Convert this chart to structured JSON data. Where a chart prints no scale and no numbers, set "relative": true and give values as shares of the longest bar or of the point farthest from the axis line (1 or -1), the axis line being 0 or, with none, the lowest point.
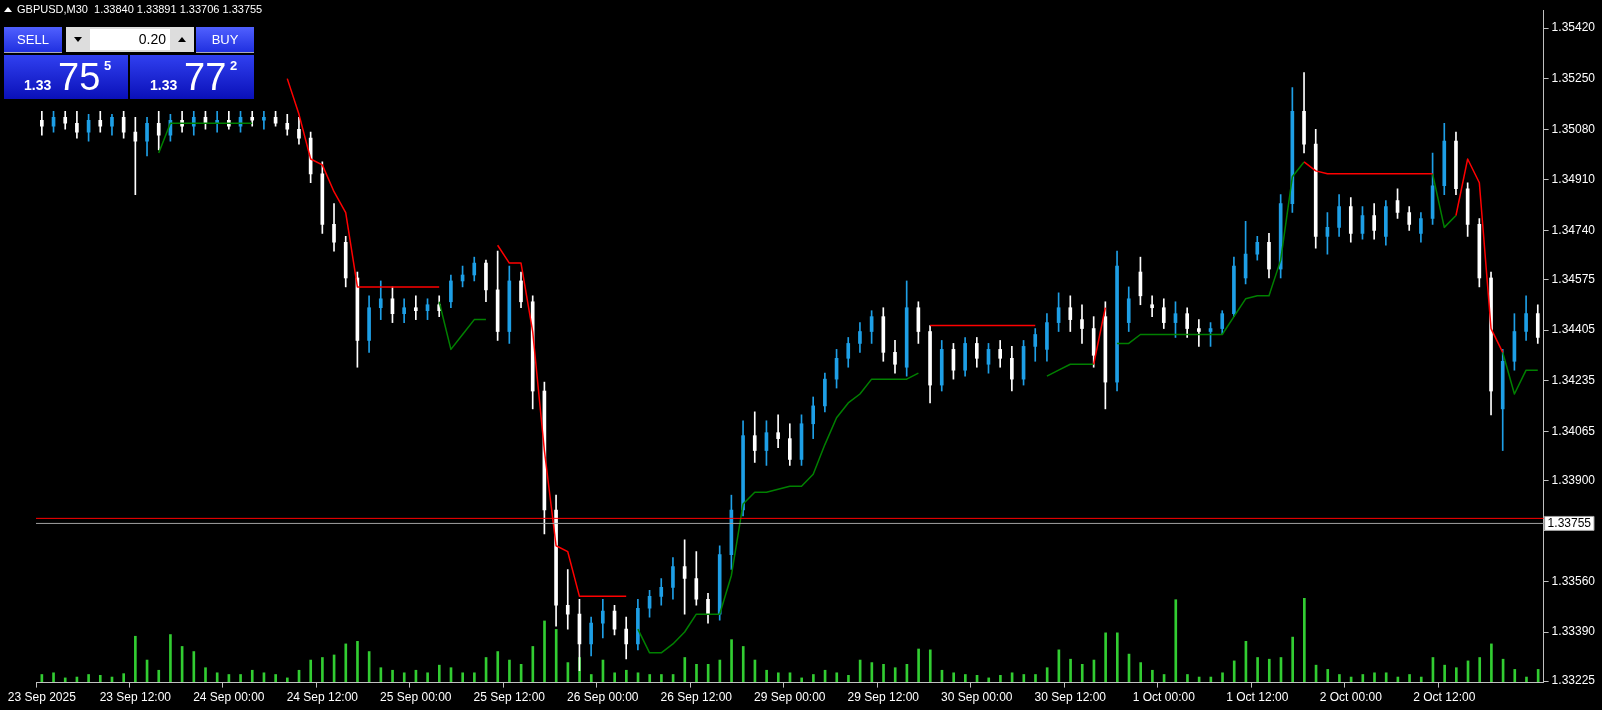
{
  "chart_data": [
    {
      "type": "candlestick",
      "title": "GBPUSD,M30  1.33840 1.33891 1.33706 1.33755",
      "categories": [
        "23 Sep 2025",
        null,
        null,
        null,
        null,
        null,
        null,
        null,
        "23 Sep 12:00",
        null,
        null,
        null,
        null,
        null,
        null,
        null,
        "24 Sep 00:00",
        null,
        null,
        null,
        null,
        null,
        null,
        null,
        "24 Sep 12:00",
        null,
        null,
        null,
        null,
        null,
        null,
        null,
        "25 Sep 00:00",
        null,
        null,
        null,
        null,
        null,
        null,
        null,
        "25 Sep 12:00",
        null,
        null,
        null,
        null,
        null,
        null,
        null,
        "26 Sep 00:00",
        null,
        null,
        null,
        null,
        null,
        null,
        null,
        "26 Sep 12:00",
        null,
        null,
        null,
        null,
        null,
        null,
        null,
        "29 Sep 00:00",
        null,
        null,
        null,
        null,
        null,
        null,
        null,
        "29 Sep 12:00",
        null,
        null,
        null,
        null,
        null,
        null,
        null,
        "30 Sep 00:00",
        null,
        null,
        null,
        null,
        null,
        null,
        null,
        "30 Sep 12:00",
        null,
        null,
        null,
        null,
        null,
        null,
        null,
        "1 Oct 00:00",
        null,
        null,
        null,
        null,
        null,
        null,
        null,
        "1 Oct 12:00",
        null,
        null,
        null,
        null,
        null,
        null,
        null,
        "2 Oct 00:00",
        null,
        null,
        null,
        null,
        null,
        null,
        null,
        "2 Oct 12:00",
        null,
        null,
        null,
        null,
        null,
        null,
        null,
        null
      ],
      "ohlc": [
        [
          1.3511,
          1.3514,
          1.3506,
          1.3509
        ],
        [
          1.3509,
          1.3514,
          1.3507,
          1.3512
        ],
        [
          1.3512,
          1.3514,
          1.3508,
          1.351
        ],
        [
          1.351,
          1.3514,
          1.3505,
          1.3507
        ],
        [
          1.3507,
          1.3513,
          1.3504,
          1.3511
        ],
        [
          1.3511,
          1.3514,
          1.3507,
          1.3509
        ],
        [
          1.3509,
          1.3513,
          1.3506,
          1.3512
        ],
        [
          1.3512,
          1.3514,
          1.3505,
          1.3507
        ],
        [
          1.3507,
          1.3512,
          1.3486,
          1.3504
        ],
        [
          1.3504,
          1.3512,
          1.3499,
          1.351
        ],
        [
          1.351,
          1.3514,
          1.3501,
          1.3506
        ],
        [
          1.3506,
          1.3513,
          1.3504,
          1.3511
        ],
        [
          1.3511,
          1.3514,
          1.3507,
          1.3509
        ],
        [
          1.3509,
          1.3514,
          1.3506,
          1.3512
        ],
        [
          1.3512,
          1.3514,
          1.3508,
          1.351
        ],
        [
          1.351,
          1.3514,
          1.3507,
          1.3511
        ],
        [
          1.3511,
          1.3514,
          1.3508,
          1.3509
        ],
        [
          1.3509,
          1.3514,
          1.3507,
          1.3512
        ],
        [
          1.3512,
          1.3514,
          1.3509,
          1.3511
        ],
        [
          1.3511,
          1.3514,
          1.3508,
          1.3512
        ],
        [
          1.3512,
          1.3514,
          1.3509,
          1.351
        ],
        [
          1.351,
          1.3513,
          1.3506,
          1.3508
        ],
        [
          1.3508,
          1.3512,
          1.3503,
          1.3505
        ],
        [
          1.3505,
          1.3507,
          1.349,
          1.3493
        ],
        [
          1.3493,
          1.3497,
          1.3473,
          1.3476
        ],
        [
          1.3476,
          1.3483,
          1.3467,
          1.347
        ],
        [
          1.347,
          1.3472,
          1.3455,
          1.3458
        ],
        [
          1.3458,
          1.346,
          1.3428,
          1.3437
        ],
        [
          1.3437,
          1.3452,
          1.3433,
          1.3448
        ],
        [
          1.3448,
          1.3457,
          1.3444,
          1.3451
        ],
        [
          1.3451,
          1.3455,
          1.3443,
          1.3446
        ],
        [
          1.3446,
          1.3451,
          1.3443,
          1.3448
        ],
        [
          1.3448,
          1.3452,
          1.3444,
          1.3447
        ],
        [
          1.3447,
          1.3451,
          1.3444,
          1.3449
        ],
        [
          1.3449,
          1.3452,
          1.3445,
          1.3447
        ],
        [
          1.345,
          1.3459,
          1.3448,
          1.3457
        ],
        [
          1.3457,
          1.3462,
          1.3455,
          1.3459
        ],
        [
          1.3459,
          1.3465,
          1.3457,
          1.3463
        ],
        [
          1.3463,
          1.3464,
          1.345,
          1.3454
        ],
        [
          1.3454,
          1.3467,
          1.3437,
          1.344
        ],
        [
          1.344,
          1.3462,
          1.3436,
          1.3457
        ],
        [
          1.3457,
          1.346,
          1.3448,
          1.345
        ],
        [
          1.345,
          1.3452,
          1.3414,
          1.342
        ],
        [
          1.342,
          1.3423,
          1.3372,
          1.338
        ],
        [
          1.338,
          1.3385,
          1.3341,
          1.3348
        ],
        [
          1.3348,
          1.336,
          1.334,
          1.3345
        ],
        [
          1.3345,
          1.335,
          1.3326,
          1.3335
        ],
        [
          1.3335,
          1.3344,
          1.3331,
          1.3342
        ],
        [
          1.3342,
          1.335,
          1.3337,
          1.3346
        ],
        [
          1.3346,
          1.3348,
          1.3338,
          1.334
        ],
        [
          1.334,
          1.3344,
          1.333,
          1.3335
        ],
        [
          1.3335,
          1.335,
          1.3333,
          1.3347
        ],
        [
          1.3347,
          1.3353,
          1.3344,
          1.3351
        ],
        [
          1.3351,
          1.3357,
          1.3348,
          1.3354
        ],
        [
          1.3354,
          1.3364,
          1.335,
          1.3361
        ],
        [
          1.3361,
          1.337,
          1.3345,
          1.3357
        ],
        [
          1.3357,
          1.3366,
          1.3348,
          1.335
        ],
        [
          1.335,
          1.3352,
          1.3342,
          1.3345
        ],
        [
          1.3345,
          1.3368,
          1.3343,
          1.3365
        ],
        [
          1.3365,
          1.3385,
          1.336,
          1.338
        ],
        [
          1.338,
          1.341,
          1.3378,
          1.3405
        ],
        [
          1.3405,
          1.3413,
          1.3396,
          1.34
        ],
        [
          1.34,
          1.341,
          1.3395,
          1.3406
        ],
        [
          1.3406,
          1.3412,
          1.3401,
          1.3404
        ],
        [
          1.3404,
          1.3409,
          1.3395,
          1.3397
        ],
        [
          1.3397,
          1.3412,
          1.3395,
          1.3409
        ],
        [
          1.3409,
          1.3418,
          1.3404,
          1.3415
        ],
        [
          1.3415,
          1.3426,
          1.3413,
          1.3424
        ],
        [
          1.3424,
          1.3434,
          1.3421,
          1.3431
        ],
        [
          1.3431,
          1.3438,
          1.3428,
          1.3436
        ],
        [
          1.3436,
          1.3443,
          1.3433,
          1.344
        ],
        [
          1.344,
          1.3447,
          1.3436,
          1.3445
        ],
        [
          1.3445,
          1.3448,
          1.343,
          1.3433
        ],
        [
          1.3433,
          1.3437,
          1.3426,
          1.3429
        ],
        [
          1.3428,
          1.3457,
          1.3425,
          1.3448
        ],
        [
          1.3448,
          1.345,
          1.3436,
          1.344
        ],
        [
          1.344,
          1.3442,
          1.3416,
          1.3422
        ],
        [
          1.3422,
          1.3437,
          1.342,
          1.3434
        ],
        [
          1.3434,
          1.3436,
          1.3424,
          1.3427
        ],
        [
          1.3427,
          1.3438,
          1.3425,
          1.3436
        ],
        [
          1.3436,
          1.3438,
          1.3428,
          1.3431
        ],
        [
          1.3429,
          1.3436,
          1.3426,
          1.3434
        ],
        [
          1.3434,
          1.3437,
          1.3428,
          1.3431
        ],
        [
          1.3431,
          1.3435,
          1.342,
          1.3424
        ],
        [
          1.3424,
          1.3437,
          1.3422,
          1.3435
        ],
        [
          1.3435,
          1.3441,
          1.343,
          1.3439
        ],
        [
          1.3434,
          1.3446,
          1.343,
          1.3443
        ],
        [
          1.3443,
          1.3453,
          1.344,
          1.3448
        ],
        [
          1.3448,
          1.3452,
          1.344,
          1.3444
        ],
        [
          1.3444,
          1.3449,
          1.3436,
          1.3441
        ],
        [
          1.3441,
          1.3445,
          1.3428,
          1.3432
        ],
        [
          1.3445,
          1.345,
          1.3414,
          1.3423
        ],
        [
          1.3423,
          1.3467,
          1.342,
          1.3462
        ],
        [
          1.3443,
          1.3455,
          1.344,
          1.3451
        ],
        [
          1.346,
          1.3465,
          1.3449,
          1.3452
        ],
        [
          1.3449,
          1.3452,
          1.3445,
          1.3448
        ],
        [
          1.3448,
          1.3451,
          1.3441,
          1.3443
        ],
        [
          1.3443,
          1.345,
          1.3438,
          1.3446
        ],
        [
          1.3446,
          1.3448,
          1.3438,
          1.3441
        ],
        [
          1.3441,
          1.3444,
          1.3435,
          1.344
        ],
        [
          1.344,
          1.3443,
          1.3435,
          1.3441
        ],
        [
          1.3441,
          1.3447,
          1.3439,
          1.3446
        ],
        [
          1.3446,
          1.3465,
          1.3445,
          1.3462
        ],
        [
          1.3458,
          1.3477,
          1.3456,
          1.3466
        ],
        [
          1.3466,
          1.3472,
          1.3464,
          1.347
        ],
        [
          1.347,
          1.3473,
          1.3458,
          1.3461
        ],
        [
          1.3461,
          1.3486,
          1.3458,
          1.3483
        ],
        [
          1.3483,
          1.3522,
          1.348,
          1.3514
        ],
        [
          1.3514,
          1.3527,
          1.35,
          1.3503
        ],
        [
          1.3503,
          1.3508,
          1.3468,
          1.3472
        ],
        [
          1.3472,
          1.348,
          1.3466,
          1.3475
        ],
        [
          1.3475,
          1.3486,
          1.3472,
          1.3482
        ],
        [
          1.3482,
          1.3485,
          1.347,
          1.3473
        ],
        [
          1.3473,
          1.3482,
          1.3471,
          1.3479
        ],
        [
          1.3479,
          1.3483,
          1.3471,
          1.3474
        ],
        [
          1.3472,
          1.3484,
          1.3469,
          1.3482
        ],
        [
          1.3484,
          1.3488,
          1.3478,
          1.348
        ],
        [
          1.348,
          1.3482,
          1.3474,
          1.3476
        ],
        [
          1.3473,
          1.348,
          1.347,
          1.3478
        ],
        [
          1.3478,
          1.35,
          1.3476,
          1.3489
        ],
        [
          1.3489,
          1.351,
          1.3486,
          1.3504
        ],
        [
          1.3504,
          1.3507,
          1.3486,
          1.3488
        ],
        [
          1.3488,
          1.349,
          1.3472,
          1.3476
        ],
        [
          1.3476,
          1.3478,
          1.3455,
          1.3458
        ],
        [
          1.3458,
          1.346,
          1.3412,
          1.342
        ],
        [
          1.3414,
          1.3434,
          1.34,
          1.343
        ],
        [
          1.343,
          1.3446,
          1.3427,
          1.344
        ],
        [
          1.344,
          1.3452,
          1.3437,
          1.3446
        ],
        [
          1.3446,
          1.3449,
          1.3436,
          1.3438
        ]
      ],
      "colors": [
        "#ffffff",
        "#1e9fe6",
        "#ffffff",
        "#ffffff",
        "#1e9fe6",
        "#ffffff",
        "#1e9fe6",
        "#ffffff",
        "#ffffff",
        "#1e9fe6",
        "#ffffff",
        "#1e9fe6",
        "#ffffff",
        "#1e9fe6",
        "#ffffff",
        "#1e9fe6",
        "#ffffff",
        "#1e9fe6",
        "#ffffff",
        "#1e9fe6",
        "#ffffff",
        "#ffffff",
        "#ffffff",
        "#ffffff",
        "#ffffff",
        "#ffffff",
        "#ffffff",
        "#ffffff",
        "#1e9fe6",
        "#1e9fe6",
        "#ffffff",
        "#1e9fe6",
        "#ffffff",
        "#1e9fe6",
        "#ffffff",
        "#1e9fe6",
        "#1e9fe6",
        "#1e9fe6",
        "#ffffff",
        "#ffffff",
        "#1e9fe6",
        "#ffffff",
        "#ffffff",
        "#ffffff",
        "#ffffff",
        "#ffffff",
        "#ffffff",
        "#1e9fe6",
        "#1e9fe6",
        "#ffffff",
        "#ffffff",
        "#1e9fe6",
        "#1e9fe6",
        "#1e9fe6",
        "#1e9fe6",
        "#ffffff",
        "#ffffff",
        "#ffffff",
        "#1e9fe6",
        "#1e9fe6",
        "#1e9fe6",
        "#ffffff",
        "#1e9fe6",
        "#ffffff",
        "#ffffff",
        "#1e9fe6",
        "#1e9fe6",
        "#1e9fe6",
        "#1e9fe6",
        "#1e9fe6",
        "#1e9fe6",
        "#1e9fe6",
        "#ffffff",
        "#ffffff",
        "#1e9fe6",
        "#ffffff",
        "#ffffff",
        "#1e9fe6",
        "#ffffff",
        "#1e9fe6",
        "#ffffff",
        "#1e9fe6",
        "#ffffff",
        "#ffffff",
        "#1e9fe6",
        "#1e9fe6",
        "#1e9fe6",
        "#1e9fe6",
        "#ffffff",
        "#ffffff",
        "#ffffff",
        "#ffffff",
        "#1e9fe6",
        "#1e9fe6",
        "#ffffff",
        "#ffffff",
        "#ffffff",
        "#1e9fe6",
        "#ffffff",
        "#ffffff",
        "#1e9fe6",
        "#1e9fe6",
        "#1e9fe6",
        "#1e9fe6",
        "#1e9fe6",
        "#ffffff",
        "#1e9fe6",
        "#1e9fe6",
        "#ffffff",
        "#ffffff",
        "#1e9fe6",
        "#1e9fe6",
        "#ffffff",
        "#1e9fe6",
        "#ffffff",
        "#1e9fe6",
        "#ffffff",
        "#ffffff",
        "#1e9fe6",
        "#1e9fe6",
        "#1e9fe6",
        "#ffffff",
        "#ffffff",
        "#ffffff",
        "#ffffff",
        "#1e9fe6",
        "#1e9fe6",
        "#1e9fe6",
        "#ffffff"
      ],
      "series": [
        {
          "type": "line",
          "color": "#ff0000",
          "values": [
            null,
            null,
            null,
            null,
            null,
            null,
            null,
            null,
            null,
            null,
            null,
            null,
            null,
            null,
            null,
            null,
            null,
            null,
            null,
            null,
            null,
            1.3525,
            1.3513,
            1.3498,
            1.3496,
            1.3487,
            1.348,
            1.3455,
            1.3455,
            1.3455,
            1.3455,
            1.3455,
            1.3455,
            1.3455,
            1.3455,
            null,
            null,
            null,
            null,
            1.3469,
            1.3463,
            1.3463,
            1.344,
            1.34,
            1.3368,
            1.3366,
            1.3351,
            1.3351,
            1.3351,
            1.3351,
            1.3351,
            null,
            null,
            null,
            null,
            null,
            null,
            null,
            null,
            null,
            null,
            null,
            null,
            null,
            null,
            null,
            null,
            null,
            null,
            null,
            null,
            null,
            null,
            null,
            null,
            null,
            1.3442,
            1.3442,
            1.3442,
            1.3442,
            1.3442,
            1.3442,
            1.3442,
            1.3442,
            1.3442,
            1.3442,
            null,
            null,
            null,
            null,
            1.3429,
            1.3448,
            null,
            null,
            null,
            null,
            null,
            null,
            null,
            null,
            null,
            null,
            null,
            null,
            null,
            null,
            null,
            null,
            1.3497,
            1.3494,
            1.3493,
            1.3493,
            1.3493,
            1.3493,
            1.3493,
            1.3493,
            1.3493,
            1.3493,
            1.3493,
            1.3493,
            null,
            1.3479,
            1.3498,
            1.349,
            1.3441,
            1.3433,
            null,
            null,
            null
          ]
        },
        {
          "type": "line",
          "color": "#008000",
          "values": [
            null,
            null,
            null,
            null,
            null,
            null,
            null,
            null,
            null,
            null,
            1.35,
            1.351,
            1.351,
            1.351,
            1.351,
            1.351,
            1.351,
            1.351,
            1.351,
            null,
            null,
            null,
            null,
            null,
            null,
            null,
            null,
            null,
            null,
            null,
            null,
            null,
            null,
            null,
            1.345,
            1.3434,
            1.3439,
            1.3444,
            1.3444,
            null,
            null,
            null,
            null,
            null,
            null,
            null,
            null,
            null,
            null,
            null,
            null,
            1.334,
            1.3332,
            1.3332,
            1.3335,
            1.3339,
            1.3345,
            1.3345,
            1.3345,
            1.3358,
            1.3382,
            1.3386,
            1.3386,
            1.3387,
            1.3388,
            1.3388,
            1.3392,
            1.3402,
            1.3411,
            1.3416,
            1.3419,
            1.3424,
            1.3424,
            1.3424,
            1.3424,
            1.3426,
            null,
            null,
            null,
            null,
            null,
            null,
            null,
            null,
            null,
            null,
            1.3425,
            1.3427,
            1.3429,
            1.3429,
            1.3429,
            null,
            1.3436,
            1.3436,
            1.3439,
            1.3439,
            1.3439,
            1.3439,
            1.3439,
            1.3439,
            1.3439,
            1.3439,
            1.3445,
            1.3451,
            1.3452,
            1.3452,
            1.3464,
            1.3492,
            1.3497,
            null,
            null,
            null,
            null,
            null,
            null,
            null,
            null,
            null,
            null,
            1.3493,
            1.3475,
            1.3479,
            null,
            null,
            null,
            1.3433,
            1.3419,
            1.3427,
            1.3427
          ]
        }
      ],
      "ylim": [
        1.3322,
        1.3548
      ],
      "yticks": [
        {
          "value": 1.3542,
          "label": "1.35420"
        },
        {
          "value": 1.3525,
          "label": "1.35250"
        },
        {
          "value": 1.3508,
          "label": "1.35080"
        },
        {
          "value": 1.3491,
          "label": "1.34910"
        },
        {
          "value": 1.3474,
          "label": "1.34740"
        },
        {
          "value": 1.34575,
          "label": "1.34575"
        },
        {
          "value": 1.34405,
          "label": "1.34405"
        },
        {
          "value": 1.34235,
          "label": "1.34235"
        },
        {
          "value": 1.34065,
          "label": "1.34065"
        },
        {
          "value": 1.339,
          "label": "1.33900"
        },
        {
          "value": 1.3373,
          "label": null
        },
        {
          "value": 1.3356,
          "label": "1.33560"
        },
        {
          "value": 1.3339,
          "label": "1.33390"
        },
        {
          "value": 1.33225,
          "label": "1.33225"
        }
      ],
      "ref_lines": [
        {
          "axis": "y",
          "value": 1.33772,
          "color": "#ff0000"
        },
        {
          "axis": "y",
          "value": 1.33755,
          "label": "1.33755",
          "color": "#a0a0a0"
        }
      ],
      "marker": "none",
      "annotations": [
        "SELL",
        "0.20",
        "BUY",
        "1.33",
        "75",
        "5",
        "1.33",
        "77",
        "2"
      ]
    },
    {
      "type": "bar",
      "relative": true,
      "tick_labels": false,
      "color": "#32cd32",
      "categories": [
        null,
        null,
        null,
        null,
        null,
        null,
        null,
        null,
        null,
        null,
        null,
        null,
        null,
        null,
        null,
        null,
        null,
        null,
        null,
        null,
        null,
        null,
        null,
        null,
        null,
        null,
        null,
        null,
        null,
        null,
        null,
        null,
        null,
        null,
        null,
        null,
        null,
        null,
        null,
        null,
        null,
        null,
        null,
        null,
        null,
        null,
        null,
        null,
        null,
        null,
        null,
        null,
        null,
        null,
        null,
        null,
        null,
        null,
        null,
        null,
        null,
        null,
        null,
        null,
        null,
        null,
        null,
        null,
        null,
        null,
        null,
        null,
        null,
        null,
        null,
        null,
        null,
        null,
        null,
        null,
        null,
        null,
        null,
        null,
        null,
        null,
        null,
        null,
        null,
        null,
        null,
        null,
        null,
        null,
        null,
        null,
        null,
        null,
        null,
        null,
        null,
        null,
        null,
        null,
        null,
        null,
        null,
        null,
        null,
        null,
        null,
        null,
        null,
        null,
        null,
        null,
        null,
        null,
        null,
        null,
        null,
        null,
        null,
        null,
        null,
        null,
        null,
        null,
        null
      ],
      "values": [
        0.1,
        0.12,
        0.06,
        0.07,
        0.1,
        0.09,
        0.07,
        0.11,
        0.55,
        0.27,
        0.15,
        0.57,
        0.43,
        0.37,
        0.18,
        0.12,
        0.1,
        0.1,
        0.15,
        0.12,
        0.1,
        0.06,
        0.15,
        0.27,
        0.3,
        0.33,
        0.46,
        0.49,
        0.37,
        0.18,
        0.15,
        0.12,
        0.15,
        0.12,
        0.21,
        0.18,
        0.12,
        0.12,
        0.3,
        0.37,
        0.27,
        0.22,
        0.43,
        0.73,
        0.63,
        0.24,
        0.3,
        0.1,
        0.27,
        0.12,
        0.15,
        0.12,
        0.1,
        0.1,
        0.1,
        0.3,
        0.22,
        0.22,
        0.27,
        0.51,
        0.43,
        0.27,
        0.15,
        0.12,
        0.12,
        0.06,
        0.1,
        0.15,
        0.12,
        0.09,
        0.27,
        0.24,
        0.22,
        0.18,
        0.22,
        0.4,
        0.39,
        0.15,
        0.12,
        0.1,
        0.09,
        0.06,
        0.09,
        0.12,
        0.1,
        0.1,
        0.18,
        0.39,
        0.28,
        0.22,
        0.27,
        0.59,
        0.59,
        0.34,
        0.24,
        0.15,
        0.1,
        0.98,
        0.1,
        0.07,
        0.07,
        0.12,
        0.26,
        0.49,
        0.3,
        0.28,
        0.3,
        0.54,
        1,
        0.21,
        0.16,
        0.1,
        0.07,
        0.1,
        0.12,
        0.12,
        0.07,
        0.1,
        0.07,
        0.3,
        0.21,
        0.18,
        0.26,
        0.3,
        0.46,
        0.28,
        0.16,
        0.07,
        0.16
      ]
    }
  ]
}
